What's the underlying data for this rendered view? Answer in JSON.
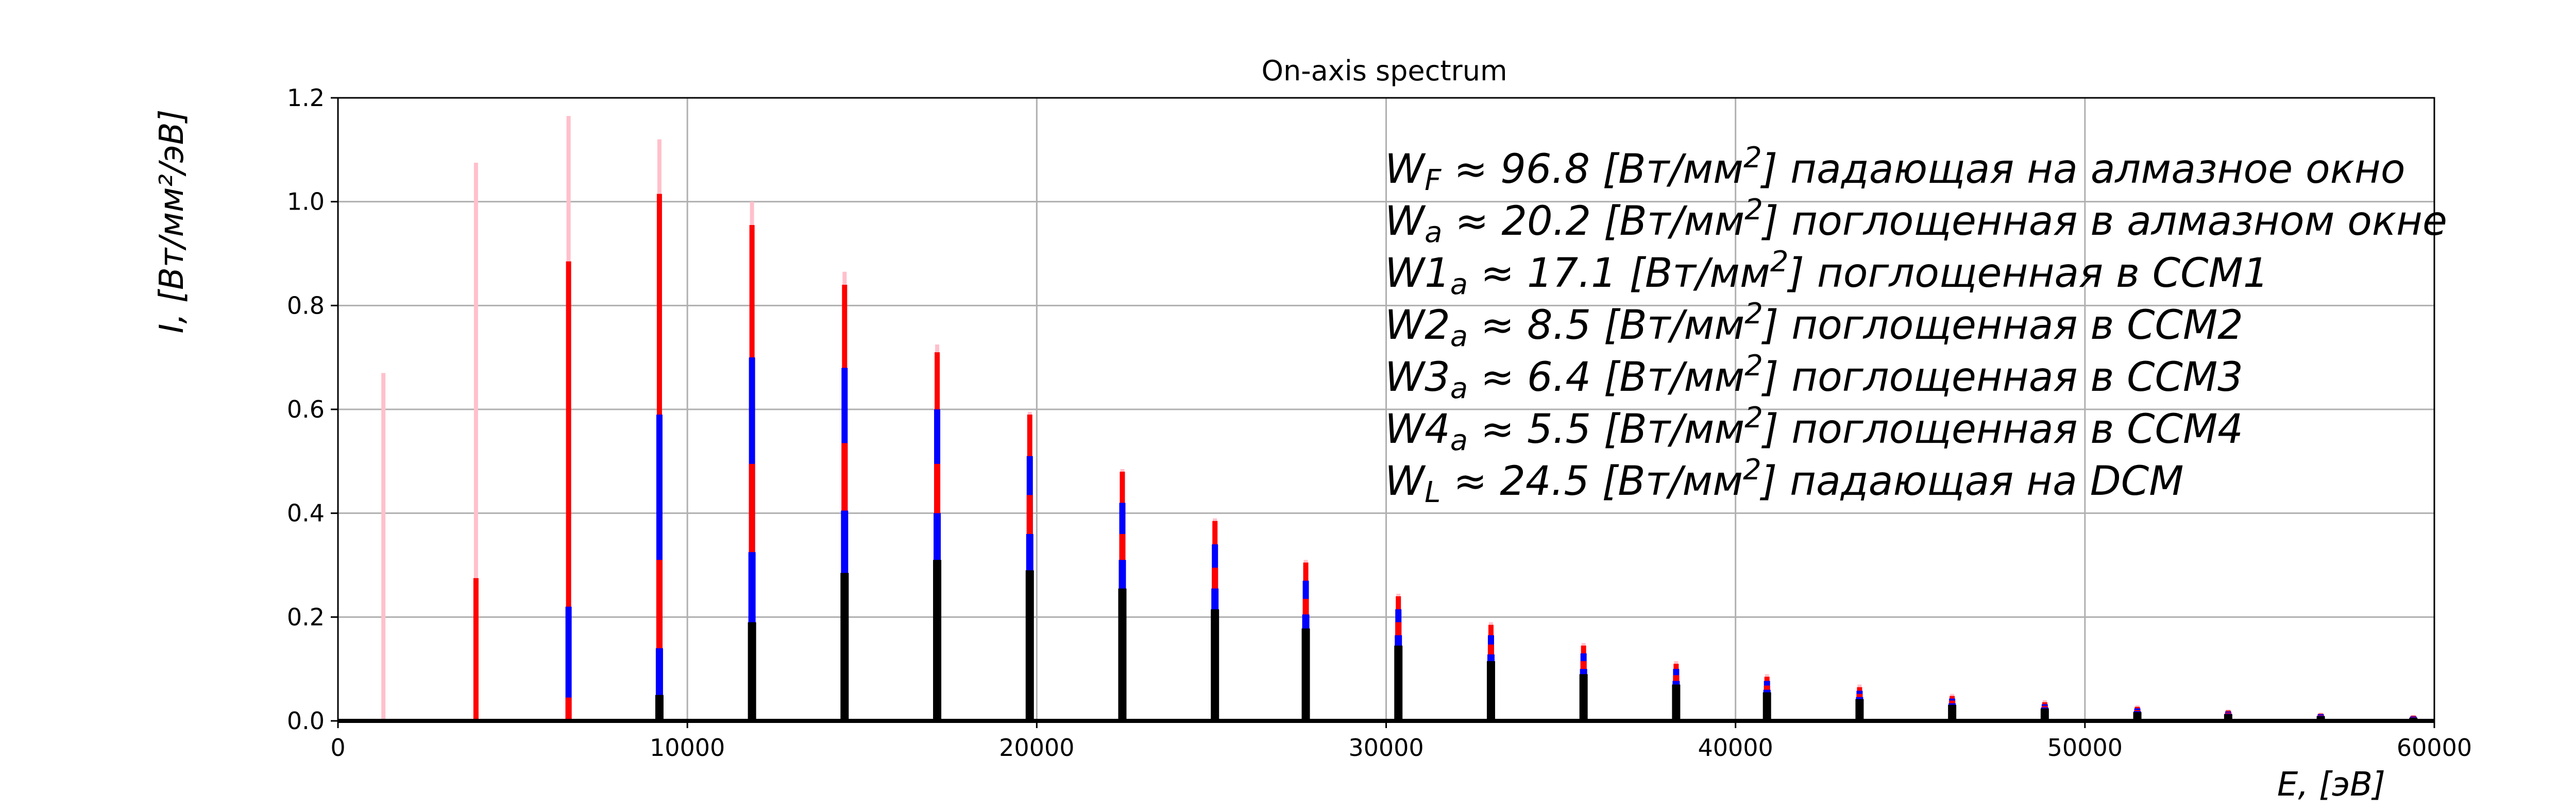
{
  "chart_data": {
    "type": "bar",
    "title": "On-axis spectrum",
    "xlabel": "E, [эВ]",
    "ylabel": "I, [Вт/мм²/эВ]",
    "xlim": [
      0,
      60000
    ],
    "ylim": [
      0,
      1.2
    ],
    "grid": true,
    "x_ticks": [
      "0",
      "10000",
      "20000",
      "30000",
      "40000",
      "50000",
      "60000"
    ],
    "y_ticks": [
      "0.0",
      "0.2",
      "0.4",
      "0.6",
      "0.8",
      "1.0",
      "1.2"
    ],
    "x": [
      1300,
      3950,
      6600,
      9200,
      11850,
      14500,
      17150,
      19800,
      22450,
      25100,
      27700,
      30350,
      33000,
      35650,
      38300,
      40900,
      43550,
      46200,
      48850,
      51500,
      54100,
      56750,
      59400
    ],
    "series": [
      {
        "color": "#ffc0cb",
        "values": [
          0.67,
          1.075,
          1.165,
          1.12,
          1.0,
          0.865,
          0.725,
          0.595,
          0.485,
          0.39,
          0.31,
          0.245,
          0.19,
          0.15,
          0.115,
          0.09,
          0.07,
          0.052,
          0.04,
          0.03,
          0.022,
          0.016,
          0.011
        ]
      },
      {
        "color": "#ff0000",
        "values": [
          0.0,
          0.275,
          0.885,
          1.015,
          0.955,
          0.84,
          0.71,
          0.59,
          0.48,
          0.385,
          0.305,
          0.24,
          0.185,
          0.145,
          0.11,
          0.085,
          0.065,
          0.048,
          0.036,
          0.027,
          0.02,
          0.014,
          0.01
        ]
      },
      {
        "color": "#0000ff",
        "values": [
          0.0,
          0.0,
          0.22,
          0.59,
          0.7,
          0.68,
          0.6,
          0.51,
          0.42,
          0.34,
          0.27,
          0.215,
          0.165,
          0.13,
          0.1,
          0.077,
          0.058,
          0.043,
          0.032,
          0.024,
          0.018,
          0.013,
          0.009
        ]
      },
      {
        "color": "#ff0000",
        "values": [
          0.0,
          0.0,
          0.045,
          0.31,
          0.495,
          0.535,
          0.495,
          0.435,
          0.36,
          0.295,
          0.235,
          0.19,
          0.147,
          0.115,
          0.088,
          0.068,
          0.052,
          0.039,
          0.029,
          0.021,
          0.016,
          0.011,
          0.008
        ]
      },
      {
        "color": "#0000ff",
        "values": [
          0.0,
          0.0,
          0.0,
          0.14,
          0.325,
          0.405,
          0.4,
          0.36,
          0.31,
          0.255,
          0.205,
          0.165,
          0.128,
          0.1,
          0.077,
          0.06,
          0.046,
          0.034,
          0.026,
          0.019,
          0.014,
          0.01,
          0.007
        ]
      },
      {
        "color": "#000000",
        "values": [
          0.0,
          0.0,
          0.0,
          0.05,
          0.19,
          0.285,
          0.31,
          0.29,
          0.255,
          0.215,
          0.178,
          0.145,
          0.115,
          0.09,
          0.07,
          0.055,
          0.042,
          0.031,
          0.024,
          0.017,
          0.013,
          0.009,
          0.006
        ]
      }
    ],
    "annotations": [
      {
        "sym": "W",
        "sub": "F",
        "text": " ≈ 96.8 [Вт/мм",
        "sup": "2",
        "tail": "] падающая на алмазное окно"
      },
      {
        "sym": "W",
        "sub": "a",
        "text": " ≈ 20.2 [Вт/мм",
        "sup": "2",
        "tail": "] поглощенная в алмазном окне"
      },
      {
        "sym": "W1",
        "sub": "a",
        "text": " ≈ 17.1 [Вт/мм",
        "sup": "2",
        "tail": "] поглощенная в CCM1"
      },
      {
        "sym": "W2",
        "sub": "a",
        "text": " ≈ 8.5 [Вт/мм",
        "sup": "2",
        "tail": "] поглощенная в CCM2"
      },
      {
        "sym": "W3",
        "sub": "a",
        "text": " ≈ 6.4 [Вт/мм",
        "sup": "2",
        "tail": "] поглощенная в CCM3"
      },
      {
        "sym": "W4",
        "sub": "a",
        "text": " ≈ 5.5 [Вт/мм",
        "sup": "2",
        "tail": "] поглощенная в CCM4"
      },
      {
        "sym": "W",
        "sub": "L",
        "text": " ≈ 24.5 [Вт/мм",
        "sup": "2",
        "tail": "] падающая на DCM"
      }
    ]
  }
}
